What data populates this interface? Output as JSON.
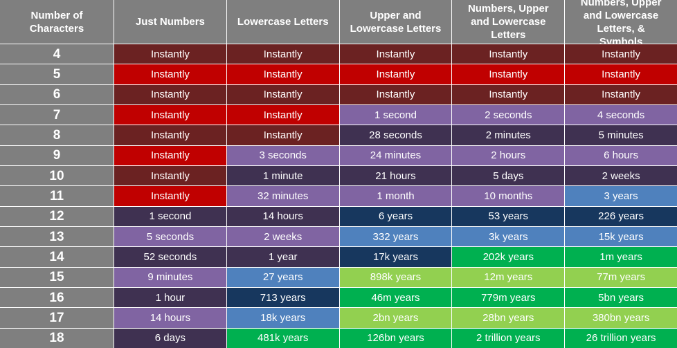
{
  "table": {
    "header": [
      "Number of Characters",
      "Just Numbers",
      "Lowercase Letters",
      "Upper and Lowercase Letters",
      "Numbers, Upper and Lowercase Letters",
      "Numbers, Upper and Lowercase Letters, & Symbols"
    ],
    "rows": [
      {
        "length": "4",
        "cells": [
          {
            "text": "Instantly",
            "color": "#6b2222"
          },
          {
            "text": "Instantly",
            "color": "#6b2222"
          },
          {
            "text": "Instantly",
            "color": "#6b2222"
          },
          {
            "text": "Instantly",
            "color": "#6b2222"
          },
          {
            "text": "Instantly",
            "color": "#6b2222"
          }
        ]
      },
      {
        "length": "5",
        "cells": [
          {
            "text": "Instantly",
            "color": "#c00000"
          },
          {
            "text": "Instantly",
            "color": "#c00000"
          },
          {
            "text": "Instantly",
            "color": "#c00000"
          },
          {
            "text": "Instantly",
            "color": "#c00000"
          },
          {
            "text": "Instantly",
            "color": "#c00000"
          }
        ]
      },
      {
        "length": "6",
        "cells": [
          {
            "text": "Instantly",
            "color": "#6b2222"
          },
          {
            "text": "Instantly",
            "color": "#6b2222"
          },
          {
            "text": "Instantly",
            "color": "#6b2222"
          },
          {
            "text": "Instantly",
            "color": "#6b2222"
          },
          {
            "text": "Instantly",
            "color": "#6b2222"
          }
        ]
      },
      {
        "length": "7",
        "cells": [
          {
            "text": "Instantly",
            "color": "#c00000"
          },
          {
            "text": "Instantly",
            "color": "#c00000"
          },
          {
            "text": "1 second",
            "color": "#8064a2"
          },
          {
            "text": "2 seconds",
            "color": "#8064a2"
          },
          {
            "text": "4 seconds",
            "color": "#8064a2"
          }
        ]
      },
      {
        "length": "8",
        "cells": [
          {
            "text": "Instantly",
            "color": "#6b2222"
          },
          {
            "text": "Instantly",
            "color": "#6b2222"
          },
          {
            "text": "28 seconds",
            "color": "#3f3151"
          },
          {
            "text": "2 minutes",
            "color": "#3f3151"
          },
          {
            "text": "5 minutes",
            "color": "#3f3151"
          }
        ]
      },
      {
        "length": "9",
        "cells": [
          {
            "text": "Instantly",
            "color": "#c00000"
          },
          {
            "text": "3 seconds",
            "color": "#8064a2"
          },
          {
            "text": "24 minutes",
            "color": "#8064a2"
          },
          {
            "text": "2 hours",
            "color": "#8064a2"
          },
          {
            "text": "6 hours",
            "color": "#8064a2"
          }
        ]
      },
      {
        "length": "10",
        "cells": [
          {
            "text": "Instantly",
            "color": "#6b2222"
          },
          {
            "text": "1 minute",
            "color": "#3f3151"
          },
          {
            "text": "21 hours",
            "color": "#3f3151"
          },
          {
            "text": "5 days",
            "color": "#3f3151"
          },
          {
            "text": "2 weeks",
            "color": "#3f3151"
          }
        ]
      },
      {
        "length": "11",
        "cells": [
          {
            "text": "Instantly",
            "color": "#c00000"
          },
          {
            "text": "32 minutes",
            "color": "#8064a2"
          },
          {
            "text": "1 month",
            "color": "#8064a2"
          },
          {
            "text": "10 months",
            "color": "#8064a2"
          },
          {
            "text": "3 years",
            "color": "#4f81bd"
          }
        ]
      },
      {
        "length": "12",
        "cells": [
          {
            "text": "1 second",
            "color": "#3f3151"
          },
          {
            "text": "14 hours",
            "color": "#3f3151"
          },
          {
            "text": "6 years",
            "color": "#17375e"
          },
          {
            "text": "53 years",
            "color": "#17375e"
          },
          {
            "text": "226 years",
            "color": "#17375e"
          }
        ]
      },
      {
        "length": "13",
        "cells": [
          {
            "text": "5 seconds",
            "color": "#8064a2"
          },
          {
            "text": "2 weeks",
            "color": "#8064a2"
          },
          {
            "text": "332 years",
            "color": "#4f81bd"
          },
          {
            "text": "3k years",
            "color": "#4f81bd"
          },
          {
            "text": "15k years",
            "color": "#4f81bd"
          }
        ]
      },
      {
        "length": "14",
        "cells": [
          {
            "text": "52 seconds",
            "color": "#3f3151"
          },
          {
            "text": "1 year",
            "color": "#3f3151"
          },
          {
            "text": "17k years",
            "color": "#17375e"
          },
          {
            "text": "202k years",
            "color": "#00b050"
          },
          {
            "text": "1m years",
            "color": "#00b050"
          }
        ]
      },
      {
        "length": "15",
        "cells": [
          {
            "text": "9 minutes",
            "color": "#8064a2"
          },
          {
            "text": "27 years",
            "color": "#4f81bd"
          },
          {
            "text": "898k years",
            "color": "#92d050"
          },
          {
            "text": "12m years",
            "color": "#92d050"
          },
          {
            "text": "77m years",
            "color": "#92d050"
          }
        ]
      },
      {
        "length": "16",
        "cells": [
          {
            "text": "1 hour",
            "color": "#3f3151"
          },
          {
            "text": "713 years",
            "color": "#17375e"
          },
          {
            "text": "46m years",
            "color": "#00b050"
          },
          {
            "text": "779m years",
            "color": "#00b050"
          },
          {
            "text": "5bn years",
            "color": "#00b050"
          }
        ]
      },
      {
        "length": "17",
        "cells": [
          {
            "text": "14 hours",
            "color": "#8064a2"
          },
          {
            "text": "18k years",
            "color": "#4f81bd"
          },
          {
            "text": "2bn years",
            "color": "#92d050"
          },
          {
            "text": "28bn years",
            "color": "#92d050"
          },
          {
            "text": "380bn years",
            "color": "#92d050"
          }
        ]
      },
      {
        "length": "18",
        "cells": [
          {
            "text": "6 days",
            "color": "#3f3151"
          },
          {
            "text": "481k years",
            "color": "#00b050"
          },
          {
            "text": "126bn years",
            "color": "#00b050"
          },
          {
            "text": "2 trillion years",
            "color": "#00b050"
          },
          {
            "text": "26 trillion years",
            "color": "#00b050"
          }
        ]
      }
    ]
  }
}
